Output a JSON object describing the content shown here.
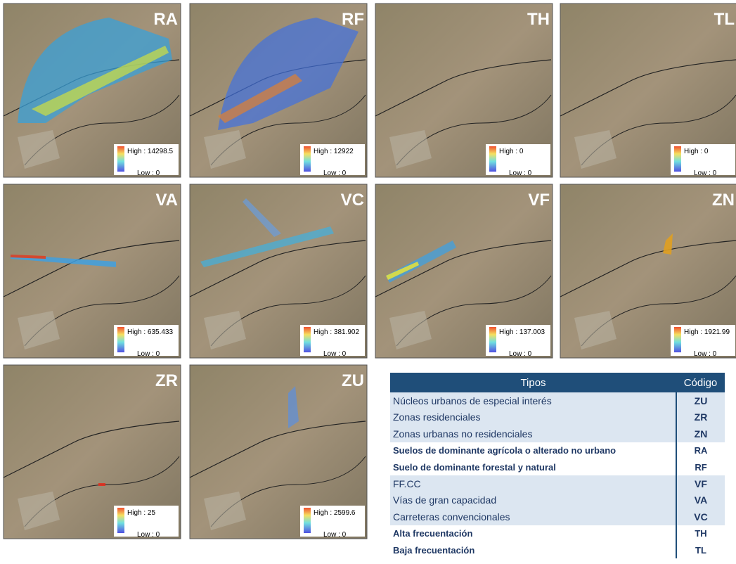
{
  "panels": [
    {
      "label": "RA",
      "high": "High : 14298.5",
      "low": "Low : 0"
    },
    {
      "label": "RF",
      "high": "High : 12922",
      "low": "Low : 0"
    },
    {
      "label": "TH",
      "high": "High : 0",
      "low": "Low : 0"
    },
    {
      "label": "TL",
      "high": "High : 0",
      "low": "Low : 0"
    },
    {
      "label": "VA",
      "high": "High : 635.433",
      "low": "Low : 0"
    },
    {
      "label": "VC",
      "high": "High : 381.902",
      "low": "Low : 0"
    },
    {
      "label": "VF",
      "high": "High : 137.003",
      "low": "Low : 0"
    },
    {
      "label": "ZN",
      "high": "High : 1921.99",
      "low": "Low : 0"
    },
    {
      "label": "ZR",
      "high": "High : 25",
      "low": "Low : 0"
    },
    {
      "label": "ZU",
      "high": "High : 2599.6",
      "low": "Low : 0"
    }
  ],
  "table": {
    "header": [
      "Tipos",
      "Código"
    ],
    "rows": [
      [
        "Núcleos urbanos de especial interés",
        "ZU"
      ],
      [
        "Zonas residenciales",
        "ZR"
      ],
      [
        "Zonas urbanas no residenciales",
        "ZN"
      ],
      [
        "Suelos de dominante agrícola o alterado no urbano",
        "RA"
      ],
      [
        "Suelo de dominante forestal y natural",
        "RF"
      ],
      [
        "FF.CC",
        "VF"
      ],
      [
        "Vías de gran capacidad",
        "VA"
      ],
      [
        "Carreteras convencionales",
        "VC"
      ],
      [
        "Alta frecuentación",
        "TH"
      ],
      [
        "Baja frecuentación",
        "TL"
      ]
    ]
  }
}
